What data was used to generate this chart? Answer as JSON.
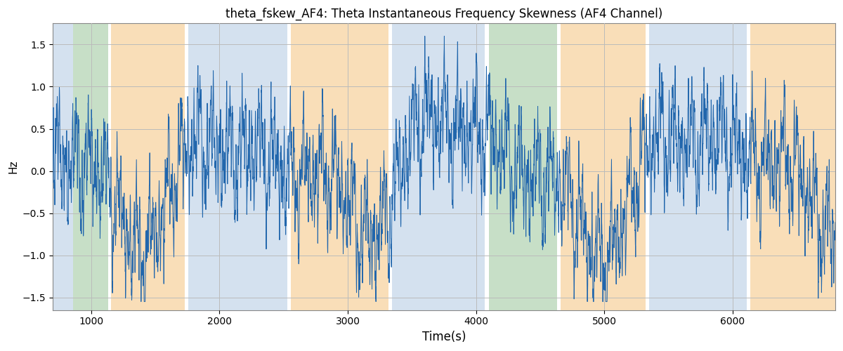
{
  "title": "theta_fskew_AF4: Theta Instantaneous Frequency Skewness (AF4 Channel)",
  "xlabel": "Time(s)",
  "ylabel": "Hz",
  "xlim": [
    700,
    6800
  ],
  "ylim": [
    -1.65,
    1.75
  ],
  "line_color": "#2166ac",
  "line_width": 0.7,
  "background_color": "#ffffff",
  "grid_color": "#bbbbbb",
  "bands": [
    {
      "xmin": 700,
      "xmax": 860,
      "color": "#aac4e0",
      "alpha": 0.5
    },
    {
      "xmin": 860,
      "xmax": 1130,
      "color": "#90c090",
      "alpha": 0.5
    },
    {
      "xmin": 1130,
      "xmax": 1155,
      "color": "#ffffff",
      "alpha": 0.0
    },
    {
      "xmin": 1155,
      "xmax": 1730,
      "color": "#f5c98a",
      "alpha": 0.6
    },
    {
      "xmin": 1730,
      "xmax": 1755,
      "color": "#ffffff",
      "alpha": 0.0
    },
    {
      "xmin": 1755,
      "xmax": 2530,
      "color": "#aac4e0",
      "alpha": 0.5
    },
    {
      "xmin": 2530,
      "xmax": 2555,
      "color": "#ffffff",
      "alpha": 0.0
    },
    {
      "xmin": 2555,
      "xmax": 3320,
      "color": "#f5c98a",
      "alpha": 0.6
    },
    {
      "xmin": 3320,
      "xmax": 3345,
      "color": "#ffffff",
      "alpha": 0.0
    },
    {
      "xmin": 3345,
      "xmax": 4070,
      "color": "#aac4e0",
      "alpha": 0.5
    },
    {
      "xmin": 4070,
      "xmax": 4100,
      "color": "#ffffff",
      "alpha": 0.0
    },
    {
      "xmin": 4100,
      "xmax": 4120,
      "color": "#90c090",
      "alpha": 0.5
    },
    {
      "xmin": 4120,
      "xmax": 4630,
      "color": "#90c090",
      "alpha": 0.5
    },
    {
      "xmin": 4630,
      "xmax": 4660,
      "color": "#ffffff",
      "alpha": 0.0
    },
    {
      "xmin": 4660,
      "xmax": 5320,
      "color": "#f5c98a",
      "alpha": 0.6
    },
    {
      "xmin": 5320,
      "xmax": 5350,
      "color": "#ffffff",
      "alpha": 0.0
    },
    {
      "xmin": 5350,
      "xmax": 6110,
      "color": "#aac4e0",
      "alpha": 0.5
    },
    {
      "xmin": 6110,
      "xmax": 6140,
      "color": "#ffffff",
      "alpha": 0.0
    },
    {
      "xmin": 6140,
      "xmax": 6800,
      "color": "#f5c98a",
      "alpha": 0.6
    }
  ],
  "x_ticks": [
    1000,
    2000,
    3000,
    4000,
    5000,
    6000
  ],
  "y_ticks": [
    -1.5,
    -1.0,
    -0.5,
    0.0,
    0.5,
    1.0,
    1.5
  ],
  "seed": 12345,
  "n_points": 6000
}
